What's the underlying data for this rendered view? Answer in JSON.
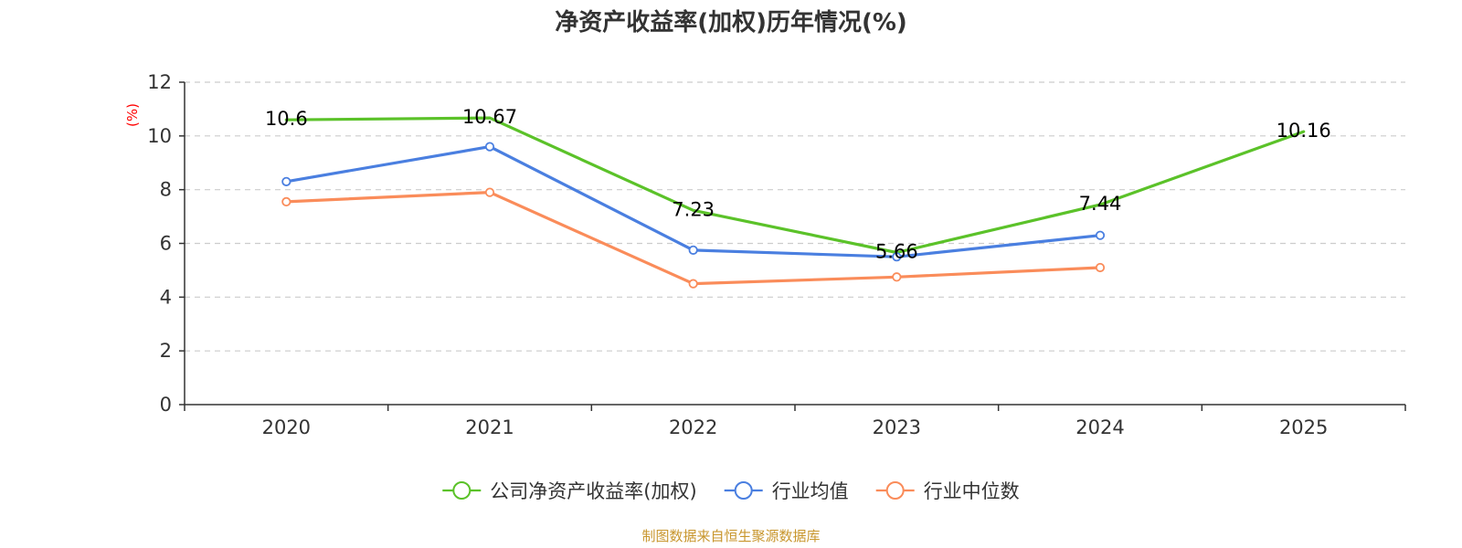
{
  "chart_data": {
    "type": "line",
    "title": "净资产收益率(加权)历年情况(%)",
    "ylabel": "(%)",
    "xlabel": "",
    "categories": [
      "2020",
      "2021",
      "2022",
      "2023",
      "2024",
      "2025"
    ],
    "ylim": [
      0,
      12
    ],
    "yticks": [
      "0",
      "2",
      "4",
      "6",
      "8",
      "10",
      "12"
    ],
    "grid": true,
    "legend_position": "bottom",
    "series": [
      {
        "name": "公司净资产收益率(加权)",
        "color": "#5bc229",
        "values": [
          10.6,
          10.67,
          7.23,
          5.66,
          7.44,
          10.16
        ],
        "labels": [
          "10.6",
          "10.67",
          "7.23",
          "5.66",
          "7.44",
          "10.16"
        ],
        "show_labels": true,
        "show_markers": false
      },
      {
        "name": "行业均值",
        "color": "#4a7fe0",
        "values": [
          8.3,
          9.6,
          5.75,
          5.5,
          6.3,
          null
        ],
        "show_labels": false,
        "show_markers": true
      },
      {
        "name": "行业中位数",
        "color": "#fa8c5a",
        "values": [
          7.55,
          7.9,
          4.5,
          4.75,
          5.1,
          null
        ],
        "show_labels": false,
        "show_markers": true
      }
    ],
    "source": "制图数据来自恒生聚源数据库"
  }
}
